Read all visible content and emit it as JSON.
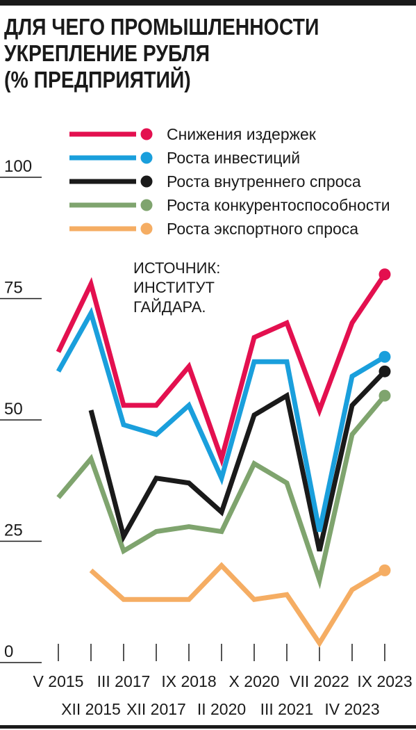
{
  "title": "ДЛЯ ЧЕГО ПРОМЫШЛЕННОСТИ\nУКРЕПЛЕНИЕ РУБЛЯ\n(% ПРЕДПРИЯТИЙ)",
  "source": "ИСТОЧНИК:\nИНСТИТУТ\nГАЙДАРА.",
  "chart_data": {
    "type": "line",
    "title": "ДЛЯ ЧЕГО ПРОМЫШЛЕННОСТИ УКРЕПЛЕНИЕ РУБЛЯ (% ПРЕДПРИЯТИЙ)",
    "categories": [
      "V 2015",
      "XII 2015",
      "III 2017",
      "XII 2017",
      "IX 2018",
      "II 2020",
      "X 2020",
      "III 2021",
      "VII 2022",
      "IV 2023",
      "IX 2023"
    ],
    "ylim": [
      0,
      100
    ],
    "yticks": [
      0,
      25,
      50,
      75,
      100
    ],
    "grid": false,
    "legend": "top",
    "series": [
      {
        "name": "Снижения издержек",
        "color": "#e3104f",
        "values": [
          64,
          78,
          53,
          53,
          61,
          42,
          67,
          70,
          52,
          70,
          80
        ]
      },
      {
        "name": "Роста инвестиций",
        "color": "#1a9fdc",
        "values": [
          60,
          72,
          49,
          47,
          53,
          38,
          62,
          62,
          27,
          59,
          63
        ]
      },
      {
        "name": "Роста внутреннего спроса",
        "color": "#1a1a1a",
        "values": [
          null,
          52,
          26,
          38,
          37,
          31,
          51,
          55,
          23,
          53,
          60
        ]
      },
      {
        "name": "Роста конкурентоспособности",
        "color": "#7fa46e",
        "values": [
          34,
          42,
          23,
          27,
          28,
          27,
          41,
          37,
          17,
          47,
          55
        ]
      },
      {
        "name": "Роста экспортного спроса",
        "color": "#f5ad63",
        "values": [
          null,
          19,
          13,
          13,
          13,
          20,
          13,
          14,
          4,
          15,
          19
        ]
      }
    ]
  }
}
